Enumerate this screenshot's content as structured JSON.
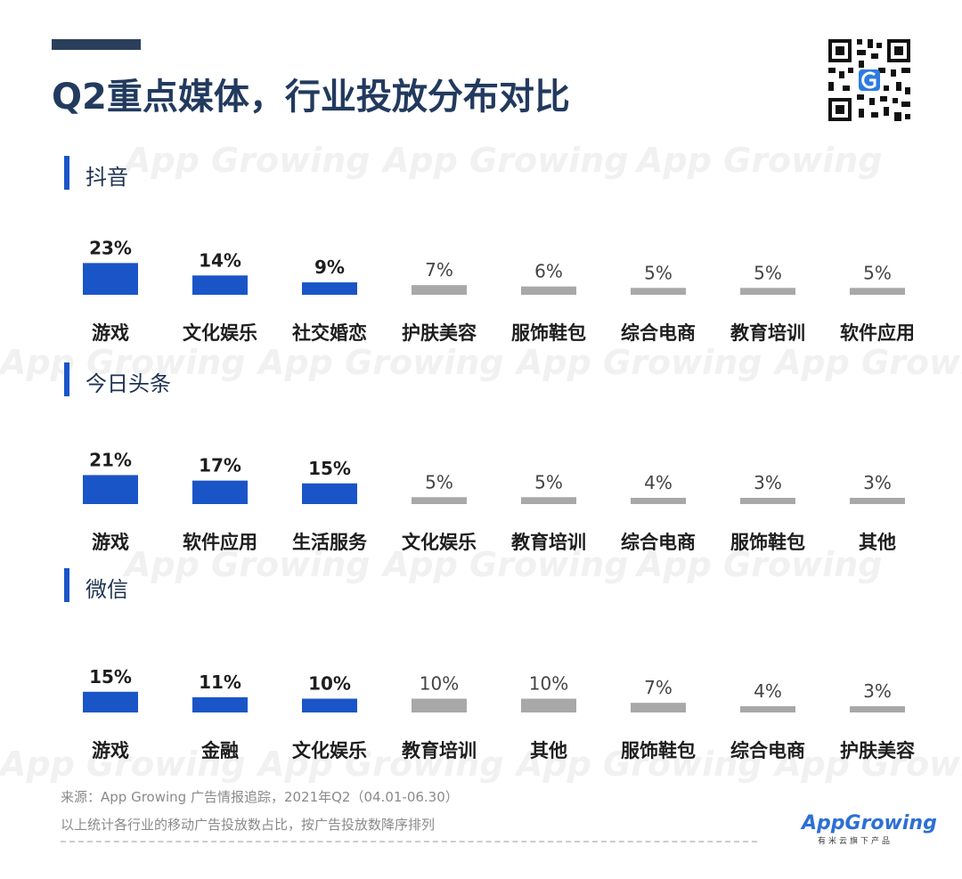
{
  "title": "Q2重点媒体，行业投放分布对比",
  "watermark_text": "App Growing",
  "colors": {
    "highlight": "#1a55c7",
    "normal": "#a8a8a8",
    "title": "#223a5e"
  },
  "icons": {
    "qr": "qr-code-icon",
    "logo": "app-growing-logo"
  },
  "chart_data": [
    {
      "type": "bar",
      "title": "抖音",
      "categories": [
        "游戏",
        "文化娱乐",
        "社交婚恋",
        "护肤美容",
        "服饰鞋包",
        "综合电商",
        "教育培训",
        "软件应用"
      ],
      "values": [
        23,
        14,
        9,
        7,
        6,
        5,
        5,
        5
      ],
      "labels": [
        "23%",
        "14%",
        "9%",
        "7%",
        "6%",
        "5%",
        "5%",
        "5%"
      ],
      "highlighted_count": 3
    },
    {
      "type": "bar",
      "title": "今日头条",
      "categories": [
        "游戏",
        "软件应用",
        "生活服务",
        "文化娱乐",
        "教育培训",
        "综合电商",
        "服饰鞋包",
        "其他"
      ],
      "values": [
        21,
        17,
        15,
        5,
        5,
        4,
        3,
        3
      ],
      "labels": [
        "21%",
        "17%",
        "15%",
        "5%",
        "5%",
        "4%",
        "3%",
        "3%"
      ],
      "highlighted_count": 3
    },
    {
      "type": "bar",
      "title": "微信",
      "categories": [
        "游戏",
        "金融",
        "文化娱乐",
        "教育培训",
        "其他",
        "服饰鞋包",
        "综合电商",
        "护肤美容"
      ],
      "values": [
        15,
        11,
        10,
        10,
        10,
        7,
        4,
        3
      ],
      "labels": [
        "15%",
        "11%",
        "10%",
        "10%",
        "10%",
        "7%",
        "4%",
        "3%"
      ],
      "highlighted_count": 3
    }
  ],
  "footer": {
    "source": "来源：App Growing 广告情报追踪，2021年Q2（04.01-06.30）",
    "note": "以上统计各行业的移动广告投放数占比，按广告投放数降序排列"
  },
  "logo": {
    "name": "AppGrowing",
    "sub": "有米云旗下产品"
  }
}
